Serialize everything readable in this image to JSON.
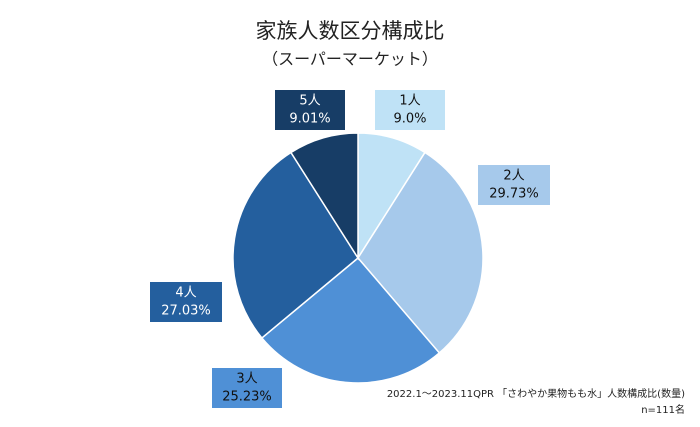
{
  "chart_data": {
    "type": "pie",
    "title": "家族人数区分構成比",
    "subtitle": "（スーパーマーケット）",
    "categories": [
      "1人",
      "2人",
      "3人",
      "4人",
      "5人"
    ],
    "values": [
      9.0,
      29.73,
      25.23,
      27.03,
      9.01
    ],
    "value_labels": [
      "9.0%",
      "29.73%",
      "25.23%",
      "27.03%",
      "9.01%"
    ],
    "colors": [
      "#bfe2f6",
      "#a6c9eb",
      "#4f90d6",
      "#245f9e",
      "#173d66"
    ],
    "notes": [
      "2022.1～2023.11QPR 「さわやか果物もも水」人数構成比(数量)",
      "n=111名"
    ]
  }
}
